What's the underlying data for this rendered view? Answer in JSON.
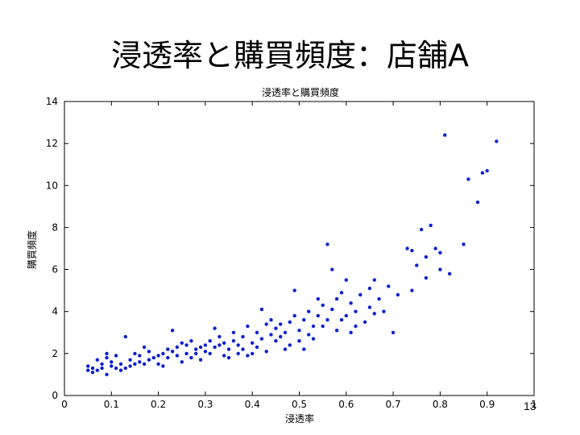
{
  "slide": {
    "title": "浸透率と購買頻度：店舗A",
    "page_number": "13"
  },
  "chart_data": {
    "type": "scatter",
    "title": "浸透率と購買頻度",
    "xlabel": "浸透率",
    "ylabel": "購買頻度",
    "xlim": [
      0,
      1.0
    ],
    "ylim": [
      0,
      14
    ],
    "xticks": [
      "0",
      "0.1",
      "0.2",
      "0.3",
      "0.4",
      "0.5",
      "0.6",
      "0.7",
      "0.8",
      "0.9",
      "1"
    ],
    "yticks": [
      "0",
      "2",
      "4",
      "6",
      "8",
      "10",
      "12",
      "14"
    ],
    "grid": false,
    "marker_color": "#0a1fd0",
    "series": [
      {
        "points": [
          [
            0.05,
            1.4
          ],
          [
            0.05,
            1.2
          ],
          [
            0.06,
            1.3
          ],
          [
            0.06,
            1.1
          ],
          [
            0.07,
            1.2
          ],
          [
            0.07,
            1.7
          ],
          [
            0.08,
            1.5
          ],
          [
            0.08,
            1.3
          ],
          [
            0.09,
            1.0
          ],
          [
            0.09,
            1.8
          ],
          [
            0.09,
            2.0
          ],
          [
            0.1,
            1.4
          ],
          [
            0.1,
            1.6
          ],
          [
            0.11,
            1.3
          ],
          [
            0.11,
            1.9
          ],
          [
            0.12,
            1.2
          ],
          [
            0.12,
            1.5
          ],
          [
            0.13,
            1.3
          ],
          [
            0.13,
            2.8
          ],
          [
            0.14,
            1.7
          ],
          [
            0.14,
            1.4
          ],
          [
            0.15,
            1.5
          ],
          [
            0.15,
            2.0
          ],
          [
            0.16,
            1.6
          ],
          [
            0.16,
            1.9
          ],
          [
            0.17,
            2.3
          ],
          [
            0.17,
            1.5
          ],
          [
            0.18,
            1.7
          ],
          [
            0.18,
            2.1
          ],
          [
            0.19,
            1.8
          ],
          [
            0.2,
            1.9
          ],
          [
            0.2,
            1.5
          ],
          [
            0.21,
            2.0
          ],
          [
            0.21,
            1.4
          ],
          [
            0.22,
            2.2
          ],
          [
            0.22,
            1.8
          ],
          [
            0.23,
            2.1
          ],
          [
            0.23,
            3.1
          ],
          [
            0.24,
            2.3
          ],
          [
            0.24,
            1.9
          ],
          [
            0.25,
            2.5
          ],
          [
            0.25,
            1.6
          ],
          [
            0.26,
            2.0
          ],
          [
            0.26,
            2.4
          ],
          [
            0.27,
            1.8
          ],
          [
            0.27,
            2.6
          ],
          [
            0.28,
            2.2
          ],
          [
            0.28,
            2.0
          ],
          [
            0.29,
            2.3
          ],
          [
            0.29,
            1.7
          ],
          [
            0.3,
            2.4
          ],
          [
            0.3,
            2.1
          ],
          [
            0.31,
            2.0
          ],
          [
            0.31,
            2.6
          ],
          [
            0.32,
            2.3
          ],
          [
            0.32,
            3.2
          ],
          [
            0.33,
            2.4
          ],
          [
            0.33,
            2.8
          ],
          [
            0.34,
            1.9
          ],
          [
            0.34,
            2.5
          ],
          [
            0.35,
            1.8
          ],
          [
            0.35,
            2.2
          ],
          [
            0.36,
            2.6
          ],
          [
            0.36,
            3.0
          ],
          [
            0.37,
            2.0
          ],
          [
            0.37,
            2.4
          ],
          [
            0.38,
            2.2
          ],
          [
            0.38,
            2.8
          ],
          [
            0.39,
            1.9
          ],
          [
            0.39,
            3.3
          ],
          [
            0.4,
            2.5
          ],
          [
            0.4,
            2.0
          ],
          [
            0.41,
            3.0
          ],
          [
            0.41,
            2.3
          ],
          [
            0.42,
            4.1
          ],
          [
            0.42,
            2.7
          ],
          [
            0.43,
            3.4
          ],
          [
            0.43,
            2.1
          ],
          [
            0.44,
            2.9
          ],
          [
            0.44,
            3.6
          ],
          [
            0.45,
            2.6
          ],
          [
            0.45,
            3.2
          ],
          [
            0.46,
            2.8
          ],
          [
            0.46,
            3.4
          ],
          [
            0.47,
            2.2
          ],
          [
            0.47,
            3.0
          ],
          [
            0.48,
            2.4
          ],
          [
            0.48,
            3.5
          ],
          [
            0.49,
            3.8
          ],
          [
            0.49,
            5.0
          ],
          [
            0.5,
            2.6
          ],
          [
            0.5,
            3.1
          ],
          [
            0.51,
            3.6
          ],
          [
            0.51,
            2.2
          ],
          [
            0.52,
            2.9
          ],
          [
            0.52,
            4.0
          ],
          [
            0.53,
            3.3
          ],
          [
            0.53,
            2.7
          ],
          [
            0.54,
            4.6
          ],
          [
            0.54,
            3.8
          ],
          [
            0.55,
            3.3
          ],
          [
            0.55,
            4.3
          ],
          [
            0.56,
            7.2
          ],
          [
            0.56,
            3.6
          ],
          [
            0.57,
            6.0
          ],
          [
            0.57,
            4.1
          ],
          [
            0.58,
            4.6
          ],
          [
            0.58,
            3.1
          ],
          [
            0.59,
            3.6
          ],
          [
            0.59,
            4.9
          ],
          [
            0.6,
            5.5
          ],
          [
            0.6,
            3.8
          ],
          [
            0.61,
            3.0
          ],
          [
            0.61,
            4.4
          ],
          [
            0.62,
            4.0
          ],
          [
            0.62,
            3.3
          ],
          [
            0.63,
            4.8
          ],
          [
            0.64,
            3.5
          ],
          [
            0.65,
            5.1
          ],
          [
            0.65,
            4.2
          ],
          [
            0.66,
            3.9
          ],
          [
            0.66,
            5.5
          ],
          [
            0.67,
            4.6
          ],
          [
            0.68,
            4.0
          ],
          [
            0.69,
            5.2
          ],
          [
            0.7,
            3.0
          ],
          [
            0.71,
            4.8
          ],
          [
            0.73,
            7.0
          ],
          [
            0.74,
            6.9
          ],
          [
            0.74,
            5.0
          ],
          [
            0.75,
            6.2
          ],
          [
            0.76,
            7.9
          ],
          [
            0.77,
            6.6
          ],
          [
            0.77,
            5.6
          ],
          [
            0.78,
            8.1
          ],
          [
            0.79,
            7.0
          ],
          [
            0.8,
            6.0
          ],
          [
            0.8,
            6.8
          ],
          [
            0.81,
            12.4
          ],
          [
            0.82,
            5.8
          ],
          [
            0.85,
            7.2
          ],
          [
            0.86,
            10.3
          ],
          [
            0.88,
            9.2
          ],
          [
            0.89,
            10.6
          ],
          [
            0.9,
            10.7
          ],
          [
            0.92,
            12.1
          ]
        ]
      }
    ]
  }
}
